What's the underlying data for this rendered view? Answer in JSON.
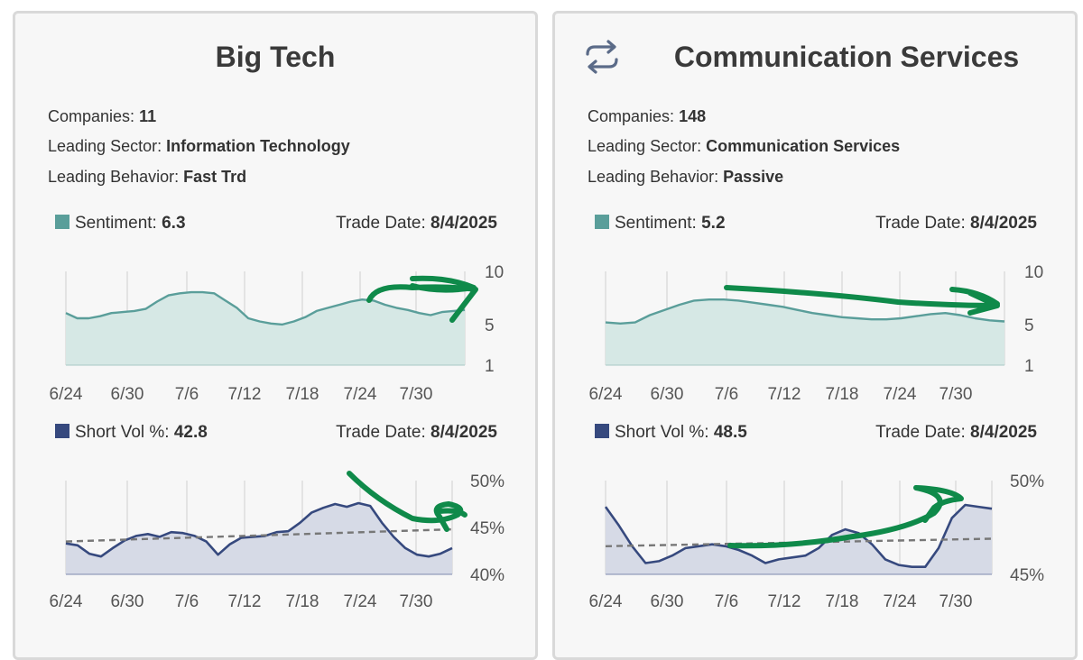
{
  "cards": [
    {
      "title": "Big Tech",
      "companies_label": "Companies:",
      "companies": "11",
      "sector_label": "Leading Sector:",
      "sector": "Information Technology",
      "behavior_label": "Leading Behavior:",
      "behavior": "Fast Trd",
      "sentiment_label": "Sentiment:",
      "sentiment": "6.3",
      "short_label": "Short Vol %:",
      "short": "42.8",
      "trade_date_label": "Trade Date:",
      "trade_date": "8/4/2025"
    },
    {
      "title": "Communication Services",
      "companies_label": "Companies:",
      "companies": "148",
      "sector_label": "Leading Sector:",
      "sector": "Communication Services",
      "behavior_label": "Leading Behavior:",
      "behavior": "Passive",
      "sentiment_label": "Sentiment:",
      "sentiment": "5.2",
      "short_label": "Short Vol %:",
      "short": "48.5",
      "trade_date_label": "Trade Date:",
      "trade_date": "8/4/2025"
    }
  ],
  "colors": {
    "sentiment_line": "#5a9e9a",
    "sentiment_fill": "#d6e8e5",
    "short_line": "#36497e",
    "short_fill": "#d6dae6",
    "trend_dash": "#777777",
    "annotation": "#0f8a4a"
  },
  "icons": [
    "refresh-icon"
  ],
  "chart_data": [
    {
      "type": "area",
      "name": "sentiment",
      "card": 0,
      "x_labels": [
        "6/24",
        "6/30",
        "7/6",
        "7/12",
        "7/18",
        "7/24",
        "7/30"
      ],
      "y_ticks": [
        10,
        5,
        1
      ],
      "ylim": [
        1,
        10
      ],
      "values": [
        6.0,
        5.5,
        5.5,
        5.7,
        6.0,
        6.1,
        6.2,
        6.4,
        7.1,
        7.7,
        7.9,
        8.0,
        8.0,
        7.9,
        7.2,
        6.5,
        5.5,
        5.2,
        5.0,
        4.9,
        5.2,
        5.6,
        6.2,
        6.5,
        6.8,
        7.1,
        7.3,
        7.2,
        6.8,
        6.5,
        6.3,
        6.0,
        5.8,
        6.1,
        6.2,
        6.3
      ]
    },
    {
      "type": "area",
      "name": "sentiment",
      "card": 1,
      "x_labels": [
        "6/24",
        "6/30",
        "7/6",
        "7/12",
        "7/18",
        "7/24",
        "7/30"
      ],
      "y_ticks": [
        10,
        5,
        1
      ],
      "ylim": [
        1,
        10
      ],
      "values": [
        5.1,
        5.0,
        5.1,
        5.8,
        6.3,
        6.8,
        7.2,
        7.3,
        7.3,
        7.2,
        7.0,
        6.8,
        6.6,
        6.3,
        6.0,
        5.8,
        5.6,
        5.5,
        5.4,
        5.4,
        5.5,
        5.7,
        5.9,
        6.0,
        5.8,
        5.5,
        5.3,
        5.2
      ]
    },
    {
      "type": "area",
      "name": "short_vol",
      "card": 0,
      "x_labels": [
        "6/24",
        "6/30",
        "7/6",
        "7/12",
        "7/18",
        "7/24",
        "7/30"
      ],
      "y_ticks": [
        "50%",
        "45%",
        "40%"
      ],
      "ylim": [
        40,
        50
      ],
      "values": [
        43.3,
        43.1,
        42.2,
        41.9,
        42.8,
        43.6,
        44.1,
        44.3,
        44.0,
        44.5,
        44.4,
        44.1,
        43.5,
        42.1,
        43.2,
        43.9,
        44.0,
        44.1,
        44.5,
        44.6,
        45.5,
        46.6,
        47.1,
        47.5,
        47.2,
        47.6,
        47.3,
        45.5,
        44.0,
        42.8,
        42.1,
        41.9,
        42.2,
        42.8
      ],
      "trend": [
        43.5,
        44.8
      ]
    },
    {
      "type": "area",
      "name": "short_vol",
      "card": 1,
      "x_labels": [
        "6/24",
        "6/30",
        "7/6",
        "7/12",
        "7/18",
        "7/24",
        "7/30"
      ],
      "y_ticks": [
        "50%",
        "45%"
      ],
      "ylim": [
        45,
        50
      ],
      "values": [
        48.6,
        47.6,
        46.5,
        45.6,
        45.7,
        46.0,
        46.4,
        46.5,
        46.6,
        46.5,
        46.3,
        46.0,
        45.6,
        45.8,
        45.9,
        46.0,
        46.4,
        47.1,
        47.4,
        47.2,
        46.6,
        45.8,
        45.5,
        45.4,
        45.4,
        46.4,
        48.0,
        48.7,
        48.6,
        48.5
      ],
      "trend": [
        46.5,
        46.9
      ]
    }
  ]
}
